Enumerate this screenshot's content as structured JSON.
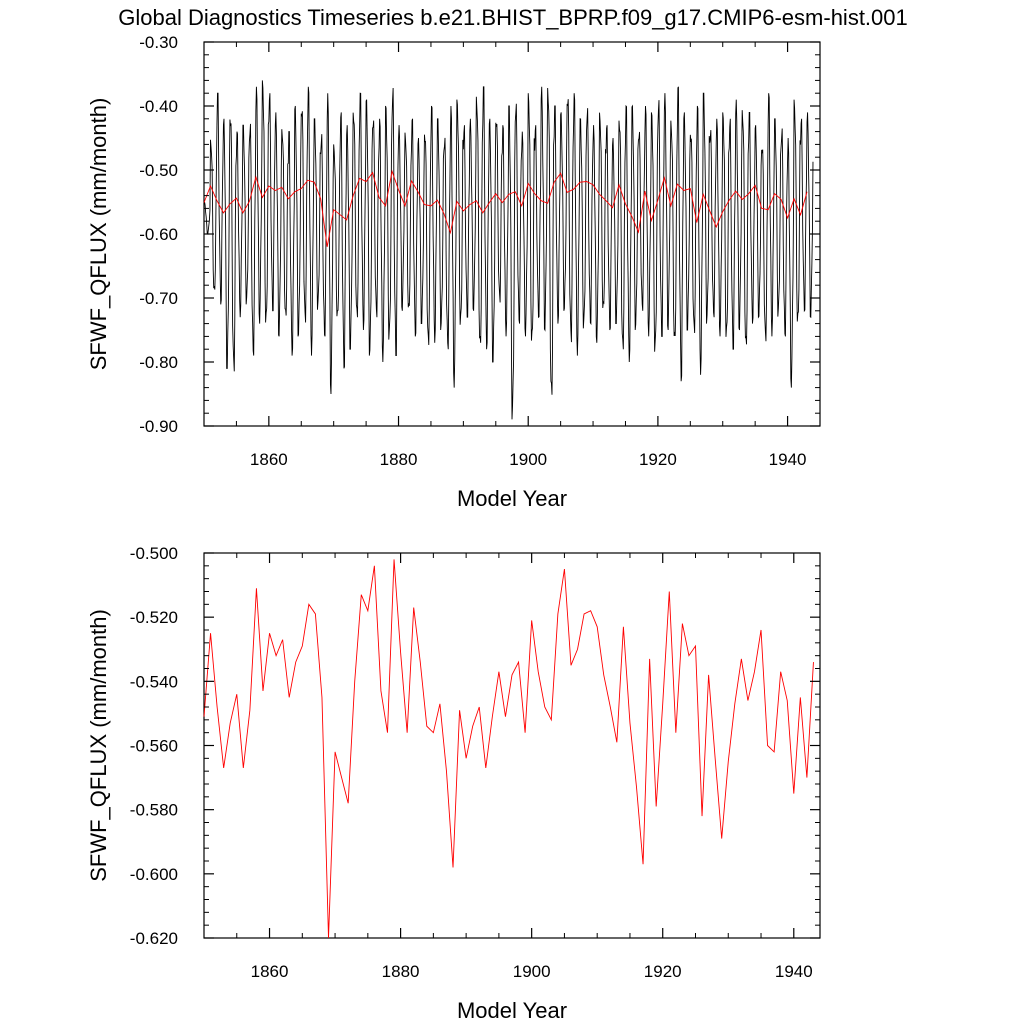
{
  "title": "Global Diagnostics Timeseries b.e21.BHIST_BPRP.f09_g17.CMIP6-esm-hist.001",
  "colors": {
    "monthly": "#000000",
    "annual": "#ff0000",
    "axes": "#000000"
  },
  "chart_data": [
    {
      "type": "line",
      "xlabel": "Model Year",
      "ylabel": "SFWF_QFLUX (mm/month)",
      "xlim": [
        1850,
        1945
      ],
      "ylim": [
        -0.9,
        -0.3
      ],
      "xticks": [
        1860,
        1880,
        1900,
        1920,
        1940
      ],
      "xtick_labels": [
        "1860",
        "1880",
        "1900",
        "1920",
        "1940"
      ],
      "yticks": [
        -0.9,
        -0.8,
        -0.7,
        -0.6,
        -0.5,
        -0.4,
        -0.3
      ],
      "ytick_labels": [
        "-0.90",
        "-0.80",
        "-0.70",
        "-0.60",
        "-0.50",
        "-0.40",
        "-0.30"
      ],
      "grid": false,
      "series": [
        {
          "kind": "monthly",
          "color": "#000000",
          "x_start": 1850,
          "step": 0.0833333,
          "annual_max": [
            -0.55,
            -0.45,
            -0.38,
            -0.42,
            -0.4,
            -0.44,
            -0.43,
            -0.42,
            -0.37,
            -0.36,
            -0.38,
            -0.41,
            -0.43,
            -0.44,
            -0.4,
            -0.39,
            -0.37,
            -0.42,
            -0.44,
            -0.38,
            -0.46,
            -0.41,
            -0.43,
            -0.4,
            -0.38,
            -0.39,
            -0.41,
            -0.42,
            -0.4,
            -0.37,
            -0.43,
            -0.44,
            -0.42,
            -0.45,
            -0.43,
            -0.4,
            -0.42,
            -0.44,
            -0.4,
            -0.39,
            -0.43,
            -0.42,
            -0.38,
            -0.37,
            -0.42,
            -0.41,
            -0.43,
            -0.4,
            -0.39,
            -0.44,
            -0.38,
            -0.43,
            -0.37,
            -0.36,
            -0.4,
            -0.41,
            -0.37,
            -0.38,
            -0.42,
            -0.4,
            -0.43,
            -0.41,
            -0.43,
            -0.45,
            -0.41,
            -0.4,
            -0.4,
            -0.43,
            -0.4,
            -0.41,
            -0.39,
            -0.38,
            -0.42,
            -0.37,
            -0.41,
            -0.43,
            -0.4,
            -0.38,
            -0.43,
            -0.42,
            -0.41,
            -0.42,
            -0.39,
            -0.4,
            -0.41,
            -0.43,
            -0.45,
            -0.38,
            -0.42,
            -0.43,
            -0.45,
            -0.39,
            -0.42,
            -0.41
          ],
          "annual_min": [
            -0.6,
            -0.7,
            -0.71,
            -0.81,
            -0.82,
            -0.73,
            -0.71,
            -0.79,
            -0.74,
            -0.75,
            -0.72,
            -0.76,
            -0.74,
            -0.79,
            -0.76,
            -0.74,
            -0.79,
            -0.72,
            -0.76,
            -0.85,
            -0.74,
            -0.81,
            -0.78,
            -0.74,
            -0.75,
            -0.79,
            -0.73,
            -0.8,
            -0.77,
            -0.79,
            -0.72,
            -0.73,
            -0.76,
            -0.74,
            -0.78,
            -0.77,
            -0.75,
            -0.78,
            -0.84,
            -0.75,
            -0.73,
            -0.72,
            -0.79,
            -0.78,
            -0.8,
            -0.71,
            -0.76,
            -0.89,
            -0.74,
            -0.76,
            -0.78,
            -0.73,
            -0.75,
            -0.87,
            -0.74,
            -0.72,
            -0.77,
            -0.79,
            -0.75,
            -0.74,
            -0.77,
            -0.73,
            -0.75,
            -0.74,
            -0.79,
            -0.8,
            -0.75,
            -0.72,
            -0.76,
            -0.79,
            -0.76,
            -0.75,
            -0.78,
            -0.83,
            -0.75,
            -0.76,
            -0.82,
            -0.74,
            -0.73,
            -0.76,
            -0.77,
            -0.78,
            -0.75,
            -0.79,
            -0.74,
            -0.73,
            -0.77,
            -0.76,
            -0.73,
            -0.76,
            -0.84,
            -0.75,
            -0.72,
            -0.73
          ]
        },
        {
          "kind": "annual",
          "color": "#ff0000",
          "x_start": 1850,
          "step": 1,
          "values": [
            -0.551,
            -0.525,
            -0.548,
            -0.567,
            -0.553,
            -0.544,
            -0.567,
            -0.549,
            -0.511,
            -0.543,
            -0.525,
            -0.532,
            -0.527,
            -0.545,
            -0.534,
            -0.529,
            -0.516,
            -0.519,
            -0.545,
            -0.62,
            -0.562,
            -0.57,
            -0.578,
            -0.54,
            -0.513,
            -0.518,
            -0.504,
            -0.543,
            -0.556,
            -0.502,
            -0.531,
            -0.556,
            -0.517,
            -0.534,
            -0.554,
            -0.556,
            -0.547,
            -0.568,
            -0.598,
            -0.549,
            -0.564,
            -0.554,
            -0.548,
            -0.567,
            -0.551,
            -0.537,
            -0.551,
            -0.538,
            -0.534,
            -0.556,
            -0.521,
            -0.537,
            -0.548,
            -0.552,
            -0.519,
            -0.505,
            -0.535,
            -0.53,
            -0.519,
            -0.518,
            -0.523,
            -0.538,
            -0.548,
            -0.559,
            -0.523,
            -0.553,
            -0.573,
            -0.597,
            -0.533,
            -0.579,
            -0.547,
            -0.512,
            -0.556,
            -0.522,
            -0.532,
            -0.529,
            -0.582,
            -0.538,
            -0.564,
            -0.589,
            -0.565,
            -0.547,
            -0.533,
            -0.546,
            -0.537,
            -0.524,
            -0.56,
            -0.562,
            -0.537,
            -0.546,
            -0.575,
            -0.545,
            -0.57,
            -0.534
          ]
        }
      ]
    },
    {
      "type": "line",
      "xlabel": "Model Year",
      "ylabel": "SFWF_QFLUX (mm/month)",
      "xlim": [
        1850,
        1944
      ],
      "ylim": [
        -0.62,
        -0.5
      ],
      "xticks": [
        1860,
        1880,
        1900,
        1920,
        1940
      ],
      "xtick_labels": [
        "1860",
        "1880",
        "1900",
        "1920",
        "1940"
      ],
      "yticks": [
        -0.62,
        -0.6,
        -0.58,
        -0.56,
        -0.54,
        -0.52,
        -0.5
      ],
      "ytick_labels": [
        "-0.620",
        "-0.600",
        "-0.580",
        "-0.560",
        "-0.540",
        "-0.520",
        "-0.500"
      ],
      "grid": false,
      "series": [
        {
          "kind": "annual",
          "color": "#ff0000",
          "x_start": 1850,
          "step": 1,
          "values": [
            -0.551,
            -0.525,
            -0.548,
            -0.567,
            -0.553,
            -0.544,
            -0.567,
            -0.549,
            -0.511,
            -0.543,
            -0.525,
            -0.532,
            -0.527,
            -0.545,
            -0.534,
            -0.529,
            -0.516,
            -0.519,
            -0.545,
            -0.62,
            -0.562,
            -0.57,
            -0.578,
            -0.54,
            -0.513,
            -0.518,
            -0.504,
            -0.543,
            -0.556,
            -0.502,
            -0.531,
            -0.556,
            -0.517,
            -0.534,
            -0.554,
            -0.556,
            -0.547,
            -0.568,
            -0.598,
            -0.549,
            -0.564,
            -0.554,
            -0.548,
            -0.567,
            -0.551,
            -0.537,
            -0.551,
            -0.538,
            -0.534,
            -0.556,
            -0.521,
            -0.537,
            -0.548,
            -0.552,
            -0.519,
            -0.505,
            -0.535,
            -0.53,
            -0.519,
            -0.518,
            -0.523,
            -0.538,
            -0.548,
            -0.559,
            -0.523,
            -0.553,
            -0.573,
            -0.597,
            -0.533,
            -0.579,
            -0.547,
            -0.512,
            -0.556,
            -0.522,
            -0.532,
            -0.529,
            -0.582,
            -0.538,
            -0.564,
            -0.589,
            -0.565,
            -0.547,
            -0.533,
            -0.546,
            -0.537,
            -0.524,
            -0.56,
            -0.562,
            -0.537,
            -0.546,
            -0.575,
            -0.545,
            -0.57,
            -0.534
          ]
        }
      ]
    }
  ]
}
